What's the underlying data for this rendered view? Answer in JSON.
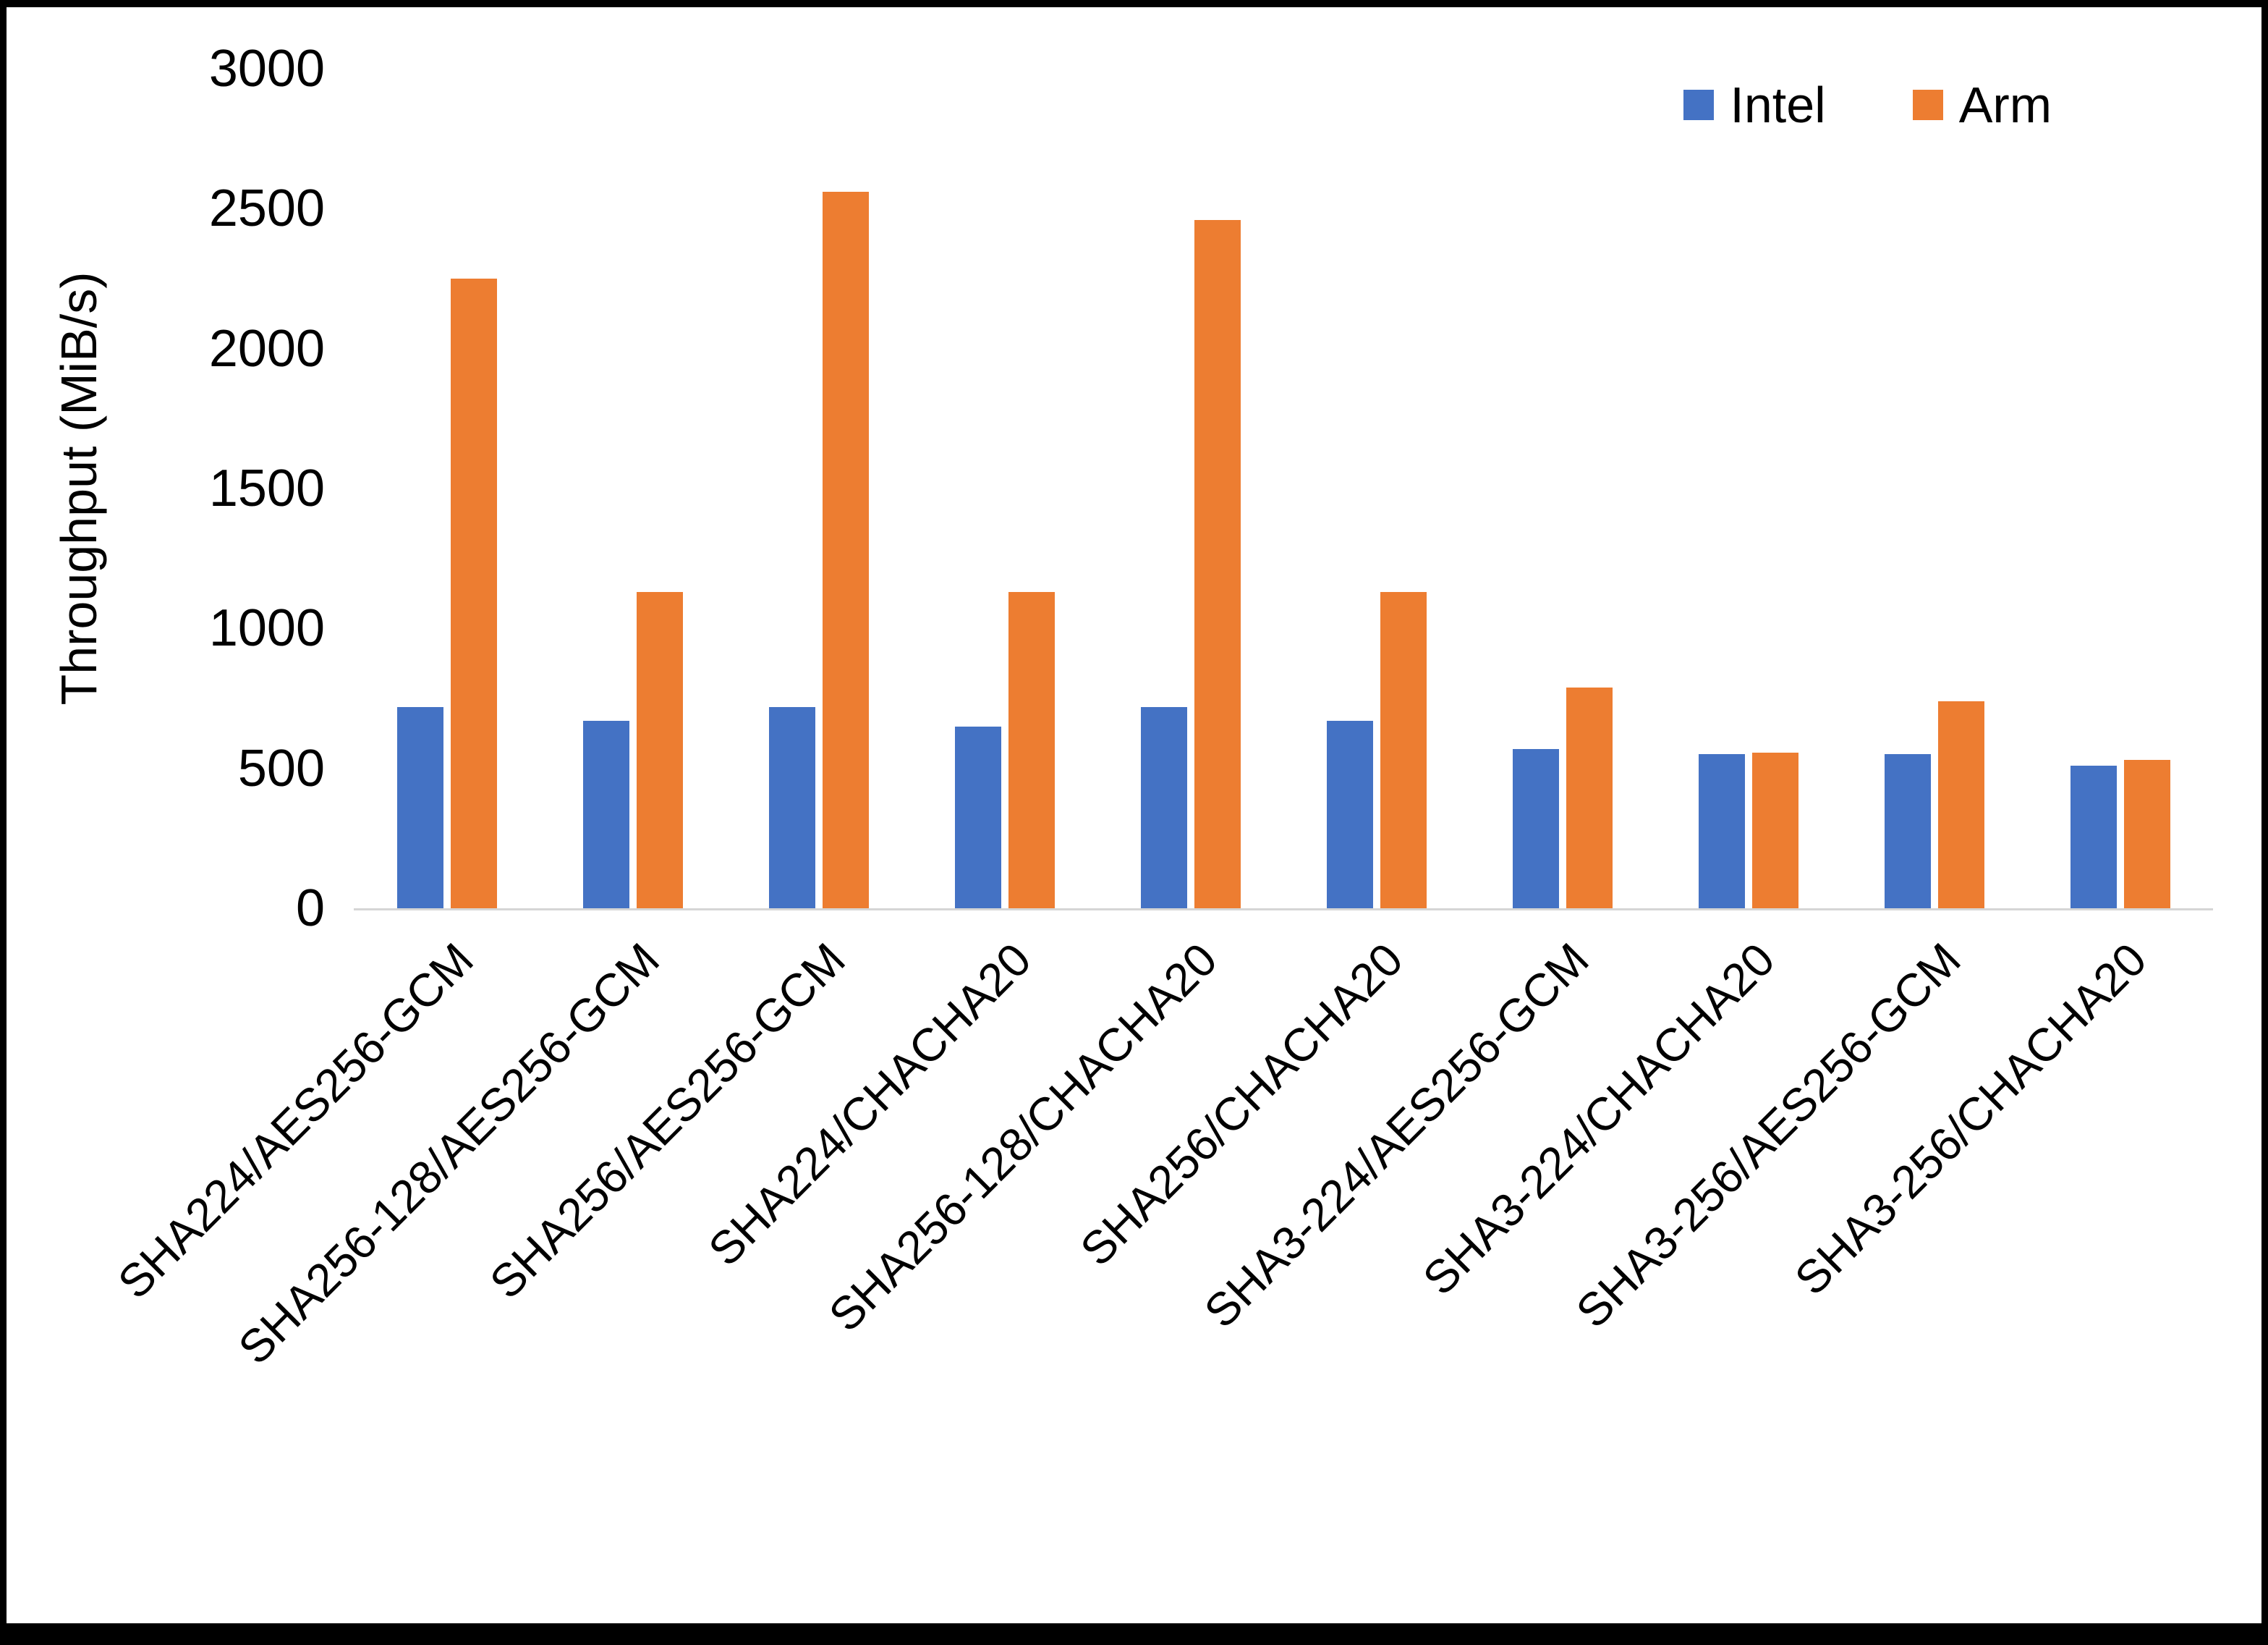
{
  "chart_data": {
    "type": "bar",
    "title": "",
    "xlabel": "",
    "ylabel": "Throughput (MiB/s)",
    "ylim": [
      0,
      3000
    ],
    "yticks": [
      0,
      500,
      1000,
      1500,
      2000,
      2500,
      3000
    ],
    "grid": false,
    "legend_position": "top-right",
    "categories": [
      "SHA224/AES256-GCM",
      "SHA256-128/AES256-GCM",
      "SHA256/AES256-GCM",
      "SHA224/CHACHA20",
      "SHA256-128/CHACHA20",
      "SHA256/CHACHA20",
      "SHA3-224/AES256-GCM",
      "SHA3-224/CHACHA20",
      "SHA3-256/AES256-GCM",
      "SHA3-256/CHACHA20"
    ],
    "series": [
      {
        "name": "Intel",
        "color": "#4472C4",
        "values": [
          720,
          670,
          720,
          650,
          720,
          670,
          570,
          550,
          550,
          510
        ]
      },
      {
        "name": "Arm",
        "color": "#ED7D31",
        "values": [
          2250,
          1130,
          2560,
          1130,
          2460,
          1130,
          790,
          555,
          740,
          530
        ]
      }
    ]
  }
}
